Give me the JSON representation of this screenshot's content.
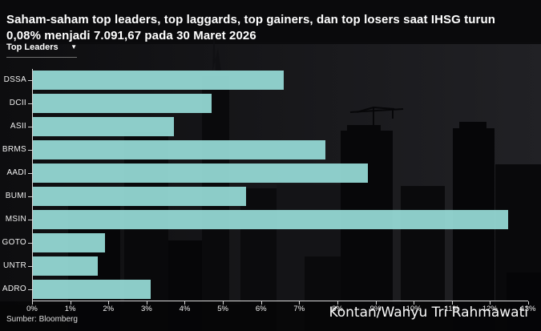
{
  "title": "Saham-saham top leaders, top laggards, top gainers, dan top losers saat IHSG turun 0,08% menjadi 7.091,67 pada 30 Maret 2026",
  "controls": {
    "filter_label": "Top Leaders",
    "caret_glyph": "▼"
  },
  "chart_data": {
    "type": "bar",
    "orientation": "horizontal",
    "title": "Saham-saham top leaders, top laggards, top gainers, dan top losers saat IHSG turun 0,08% menjadi 7.091,67 pada 30 Maret 2026",
    "selected_series": "Top Leaders",
    "categories": [
      "DSSA",
      "DCII",
      "ASII",
      "BRMS",
      "AADI",
      "BUMI",
      "MSIN",
      "GOTO",
      "UNTR",
      "ADRO"
    ],
    "values": [
      6.6,
      4.7,
      3.7,
      7.7,
      8.8,
      5.6,
      12.5,
      1.9,
      1.7,
      3.1
    ],
    "value_unit": "%",
    "xlim": [
      0,
      13
    ],
    "x_ticks": [
      "0%",
      "1%",
      "2%",
      "3%",
      "4%",
      "5%",
      "6%",
      "7%",
      "8%",
      "9%",
      "10%",
      "11%",
      "12%",
      "13%"
    ],
    "xlabel": "",
    "ylabel": "",
    "grid": false,
    "legend": "none",
    "bar_color": "#8CD1CD"
  },
  "footer": {
    "source": "Sumber: Bloomberg",
    "credit": "Kontan/Wahyu Tri Rahmawati"
  },
  "colors": {
    "background": "#0B0B0D",
    "bar": "#8CD1CD",
    "text": "#FFFFFF",
    "axis": "#D9D9D9"
  }
}
